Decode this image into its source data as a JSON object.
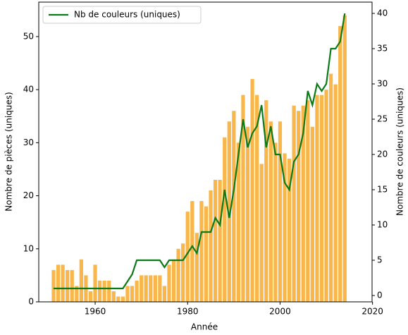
{
  "chart_data": {
    "type": "bar_line",
    "x": [
      1951,
      1952,
      1953,
      1954,
      1955,
      1956,
      1957,
      1958,
      1959,
      1960,
      1961,
      1962,
      1963,
      1964,
      1965,
      1966,
      1967,
      1968,
      1969,
      1970,
      1971,
      1972,
      1973,
      1974,
      1975,
      1976,
      1977,
      1978,
      1979,
      1980,
      1981,
      1982,
      1983,
      1984,
      1985,
      1986,
      1987,
      1988,
      1989,
      1990,
      1991,
      1992,
      1993,
      1994,
      1995,
      1996,
      1997,
      1998,
      1999,
      2000,
      2001,
      2002,
      2003,
      2004,
      2005,
      2006,
      2007,
      2008,
      2009,
      2010,
      2011,
      2012,
      2013,
      2014
    ],
    "series": [
      {
        "color": "#f9b64b",
        "values": [
          6,
          7,
          7,
          6,
          6,
          3,
          8,
          5,
          2,
          7,
          4,
          4,
          4,
          2,
          1,
          1,
          3,
          3,
          4,
          5,
          5,
          5,
          5,
          5,
          3,
          7,
          8,
          10,
          11,
          17,
          19,
          13,
          19,
          18,
          21,
          23,
          23,
          31,
          34,
          36,
          30,
          39,
          33,
          42,
          39,
          26,
          38,
          34,
          30,
          34,
          28,
          27,
          37,
          36,
          37,
          38,
          33,
          39,
          39,
          40,
          43,
          41,
          52,
          54
        ]
      },
      {
        "name": "Nb de couleurs (uniques)",
        "color": "#0b7a18",
        "axis": "y2",
        "values": [
          1,
          1,
          1,
          1,
          1,
          1,
          1,
          1,
          1,
          1,
          1,
          1,
          1,
          1,
          1,
          1,
          2,
          3,
          5,
          5,
          5,
          5,
          5,
          5,
          4,
          5,
          5,
          5,
          5,
          6,
          7,
          6,
          9,
          9,
          9,
          11,
          10,
          15,
          11,
          15,
          20,
          25,
          21,
          23,
          24,
          27,
          21,
          24,
          20,
          20,
          16,
          15,
          19,
          20,
          23,
          29,
          27,
          30,
          29,
          30,
          35,
          35,
          36,
          40
        ]
      }
    ],
    "xlabel": "Année",
    "ylabel": "Nombre de pièces (uniques)",
    "y2label": "Nombre de couleurs (uniques)",
    "xlim": [
      1947.8,
      2019.9
    ],
    "xticks": [
      1960,
      1980,
      2000,
      2020
    ],
    "ylim": [
      0,
      56.5
    ],
    "yticks": [
      0,
      10,
      20,
      30,
      40,
      50
    ],
    "y2lim": [
      -0.9,
      41.6
    ],
    "y2ticks": [
      0,
      5,
      10,
      15,
      20,
      25,
      30,
      35,
      40
    ],
    "legend": "upper left"
  }
}
